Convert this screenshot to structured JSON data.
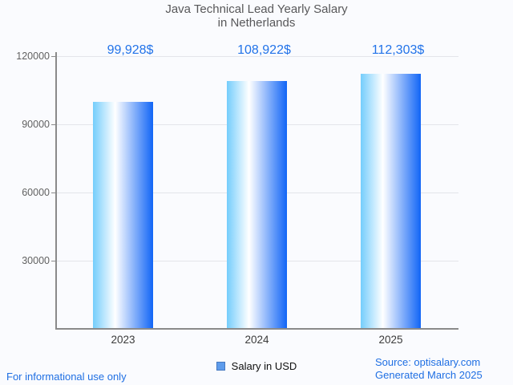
{
  "title": {
    "line1": "Java Technical Lead Yearly Salary",
    "line2": "in Netherlands"
  },
  "chart_data": {
    "type": "bar",
    "title": "Java Technical Lead Yearly Salary in Netherlands",
    "categories": [
      "2023",
      "2024",
      "2025"
    ],
    "series": [
      {
        "name": "Salary in USD",
        "values": [
          99928,
          108922,
          112303
        ]
      }
    ],
    "value_labels": [
      "99,928$",
      "108,922$",
      "112,303$"
    ],
    "xlabel": "",
    "ylabel": "",
    "ylim": [
      0,
      120000
    ],
    "yticks": [
      30000,
      60000,
      90000,
      120000
    ],
    "ytick_labels": [
      "30000",
      "60000",
      "90000",
      "120000"
    ],
    "grid": true,
    "legend_position": "bottom",
    "bar_gradient": [
      "#74cdfc",
      "#ffffff",
      "#1165f6"
    ]
  },
  "legend": {
    "label": "Salary in USD"
  },
  "footer": {
    "disclaimer": "For informational use only",
    "source": "Source: optisalary.com",
    "generated": "Generated March 2025"
  },
  "colors": {
    "background": "#fafbfe",
    "blue_text": "#2273e9",
    "title_gray": "#58585a",
    "axis_gray": "#8a8a8a",
    "grid_gray": "#e3e5ea",
    "legend_swatch_fill": "#5e9cec",
    "legend_swatch_border": "#4679c0"
  }
}
